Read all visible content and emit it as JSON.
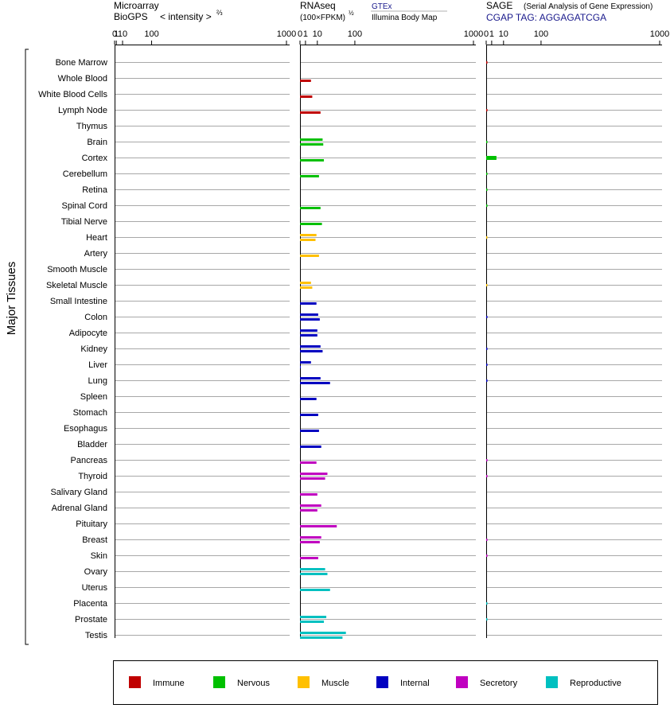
{
  "panels": {
    "microarray": {
      "title_line1": "Microarray",
      "title_line2": "BioGPS",
      "scale_label": "< intensity >",
      "scale_power": "⅔"
    },
    "rnaseq": {
      "title": "RNAseq",
      "unit_label": "(100×FPKM)",
      "unit_power": "½",
      "source_primary": "GTEx",
      "source_secondary": "Illumina Body Map"
    },
    "sage": {
      "title": "SAGE",
      "subtitle": "(Serial Analysis of Gene Expression)",
      "tag_label": "CGAP TAG: AGGAGATCGA"
    }
  },
  "y_axis_label": "Major Tissues",
  "chart_data": {
    "type": "bar",
    "orientation": "horizontal",
    "x_ticks": [
      "0",
      "1",
      "10",
      "100",
      "1000"
    ],
    "group_colors": {
      "Immune": "#c00000",
      "Nervous": "#00c000",
      "Muscle": "#ffc000",
      "Internal": "#0000c0",
      "Secretory": "#c000c0",
      "Reproductive": "#00c0c0"
    },
    "legend": [
      "Immune",
      "Nervous",
      "Muscle",
      "Internal",
      "Secretory",
      "Reproductive"
    ],
    "tissues": [
      {
        "name": "Bone Marrow",
        "group": "Immune",
        "microarray": [],
        "rnaseq": [],
        "sage": 0.05
      },
      {
        "name": "Whole Blood",
        "group": "Immune",
        "microarray": [],
        "rnaseq": [
          null,
          4
        ],
        "sage": null
      },
      {
        "name": "White Blood Cells",
        "group": "Immune",
        "microarray": [],
        "rnaseq": [
          null,
          5
        ],
        "sage": null
      },
      {
        "name": "Lymph Node",
        "group": "Immune",
        "microarray": [],
        "rnaseq": [
          null,
          14
        ],
        "sage": 0.05
      },
      {
        "name": "Thymus",
        "group": "Immune",
        "microarray": [],
        "rnaseq": [],
        "sage": null
      },
      {
        "name": "Brain",
        "group": "Nervous",
        "microarray": [],
        "rnaseq": [
          17,
          18
        ],
        "sage": 0.05
      },
      {
        "name": "Cortex",
        "group": "Nervous",
        "microarray": [],
        "rnaseq": [
          null,
          19
        ],
        "sage": 3.5
      },
      {
        "name": "Cerebellum",
        "group": "Nervous",
        "microarray": [],
        "rnaseq": [
          null,
          12
        ],
        "sage": 0.05
      },
      {
        "name": "Retina",
        "group": "Nervous",
        "microarray": [],
        "rnaseq": [],
        "sage": 0.05
      },
      {
        "name": "Spinal Cord",
        "group": "Nervous",
        "microarray": [],
        "rnaseq": [
          null,
          14
        ],
        "sage": 0.05
      },
      {
        "name": "Tibial Nerve",
        "group": "Nervous",
        "microarray": [],
        "rnaseq": [
          null,
          16
        ],
        "sage": null
      },
      {
        "name": "Heart",
        "group": "Muscle",
        "microarray": [],
        "rnaseq": [
          9,
          8
        ],
        "sage": 0.05
      },
      {
        "name": "Artery",
        "group": "Muscle",
        "microarray": [],
        "rnaseq": [
          null,
          12
        ],
        "sage": null
      },
      {
        "name": "Smooth Muscle",
        "group": "Muscle",
        "microarray": [],
        "rnaseq": [],
        "sage": null
      },
      {
        "name": "Skeletal Muscle",
        "group": "Muscle",
        "microarray": [],
        "rnaseq": [
          4,
          5
        ],
        "sage": 0.05
      },
      {
        "name": "Small Intestine",
        "group": "Internal",
        "microarray": [],
        "rnaseq": [
          null,
          9
        ],
        "sage": null
      },
      {
        "name": "Colon",
        "group": "Internal",
        "microarray": [],
        "rnaseq": [
          11,
          13
        ],
        "sage": 0.05
      },
      {
        "name": "Adipocyte",
        "group": "Internal",
        "microarray": [],
        "rnaseq": [
          10,
          10
        ],
        "sage": null
      },
      {
        "name": "Kidney",
        "group": "Internal",
        "microarray": [],
        "rnaseq": [
          14,
          17
        ],
        "sage": 0.05
      },
      {
        "name": "Liver",
        "group": "Internal",
        "microarray": [],
        "rnaseq": [
          4,
          0.02
        ],
        "sage": 0.05
      },
      {
        "name": "Lung",
        "group": "Internal",
        "microarray": [],
        "rnaseq": [
          14,
          30
        ],
        "sage": 0.05
      },
      {
        "name": "Spleen",
        "group": "Internal",
        "microarray": [],
        "rnaseq": [
          null,
          9
        ],
        "sage": null
      },
      {
        "name": "Stomach",
        "group": "Internal",
        "microarray": [],
        "rnaseq": [
          null,
          11
        ],
        "sage": null
      },
      {
        "name": "Esophagus",
        "group": "Internal",
        "microarray": [],
        "rnaseq": [
          null,
          12
        ],
        "sage": null
      },
      {
        "name": "Bladder",
        "group": "Internal",
        "microarray": [],
        "rnaseq": [
          null,
          15
        ],
        "sage": null
      },
      {
        "name": "Pancreas",
        "group": "Secretory",
        "microarray": [],
        "rnaseq": [
          null,
          9
        ],
        "sage": 0.05
      },
      {
        "name": "Thyroid",
        "group": "Secretory",
        "microarray": [],
        "rnaseq": [
          25,
          21
        ],
        "sage": 0.05
      },
      {
        "name": "Salivary Gland",
        "group": "Secretory",
        "microarray": [],
        "rnaseq": [
          null,
          10
        ],
        "sage": null
      },
      {
        "name": "Adrenal Gland",
        "group": "Secretory",
        "microarray": [],
        "rnaseq": [
          15,
          10
        ],
        "sage": null
      },
      {
        "name": "Pituitary",
        "group": "Secretory",
        "microarray": [],
        "rnaseq": [
          null,
          45
        ],
        "sage": null
      },
      {
        "name": "Breast",
        "group": "Secretory",
        "microarray": [],
        "rnaseq": [
          15,
          13
        ],
        "sage": 0.05
      },
      {
        "name": "Skin",
        "group": "Secretory",
        "microarray": [],
        "rnaseq": [
          null,
          11
        ],
        "sage": 0.05
      },
      {
        "name": "Ovary",
        "group": "Reproductive",
        "microarray": [],
        "rnaseq": [
          21,
          25
        ],
        "sage": null
      },
      {
        "name": "Uterus",
        "group": "Reproductive",
        "microarray": [],
        "rnaseq": [
          null,
          30
        ],
        "sage": null
      },
      {
        "name": "Placenta",
        "group": "Reproductive",
        "microarray": [],
        "rnaseq": [],
        "sage": 0.05
      },
      {
        "name": "Prostate",
        "group": "Reproductive",
        "microarray": [],
        "rnaseq": [
          23,
          19
        ],
        "sage": 0.05
      },
      {
        "name": "Testis",
        "group": "Reproductive",
        "microarray": [],
        "rnaseq": [
          70,
          60
        ],
        "sage": null
      }
    ]
  }
}
